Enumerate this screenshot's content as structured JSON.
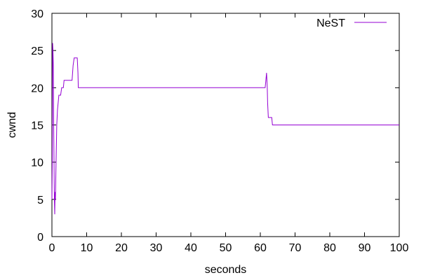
{
  "chart_data": {
    "type": "line",
    "xlabel": "seconds",
    "ylabel": "cwnd",
    "xlim": [
      0,
      100
    ],
    "ylim": [
      0,
      30
    ],
    "xticks": [
      0,
      10,
      20,
      30,
      40,
      50,
      60,
      70,
      80,
      90,
      100
    ],
    "yticks": [
      0,
      5,
      10,
      15,
      20,
      25,
      30
    ],
    "grid": false,
    "legend_position": "top-right",
    "series": [
      {
        "name": "NeST",
        "color": "#9400d3",
        "points": [
          [
            0.0,
            5
          ],
          [
            0.1,
            10
          ],
          [
            0.2,
            26
          ],
          [
            0.3,
            25
          ],
          [
            0.4,
            23
          ],
          [
            0.5,
            15
          ],
          [
            0.6,
            10
          ],
          [
            0.7,
            5
          ],
          [
            0.8,
            3
          ],
          [
            0.9,
            6
          ],
          [
            1.0,
            5
          ],
          [
            1.2,
            10
          ],
          [
            1.4,
            15
          ],
          [
            1.6,
            17
          ],
          [
            1.8,
            18
          ],
          [
            2.0,
            19
          ],
          [
            2.5,
            19
          ],
          [
            2.8,
            20
          ],
          [
            3.3,
            20
          ],
          [
            3.5,
            21
          ],
          [
            5.8,
            21
          ],
          [
            6.1,
            23
          ],
          [
            6.4,
            24
          ],
          [
            7.3,
            24
          ],
          [
            7.5,
            22
          ],
          [
            7.6,
            20
          ],
          [
            61.4,
            20
          ],
          [
            61.6,
            21
          ],
          [
            61.8,
            22
          ],
          [
            62.0,
            20
          ],
          [
            62.1,
            18
          ],
          [
            62.3,
            16
          ],
          [
            63.3,
            16
          ],
          [
            63.5,
            15
          ],
          [
            100,
            15
          ]
        ]
      }
    ]
  }
}
